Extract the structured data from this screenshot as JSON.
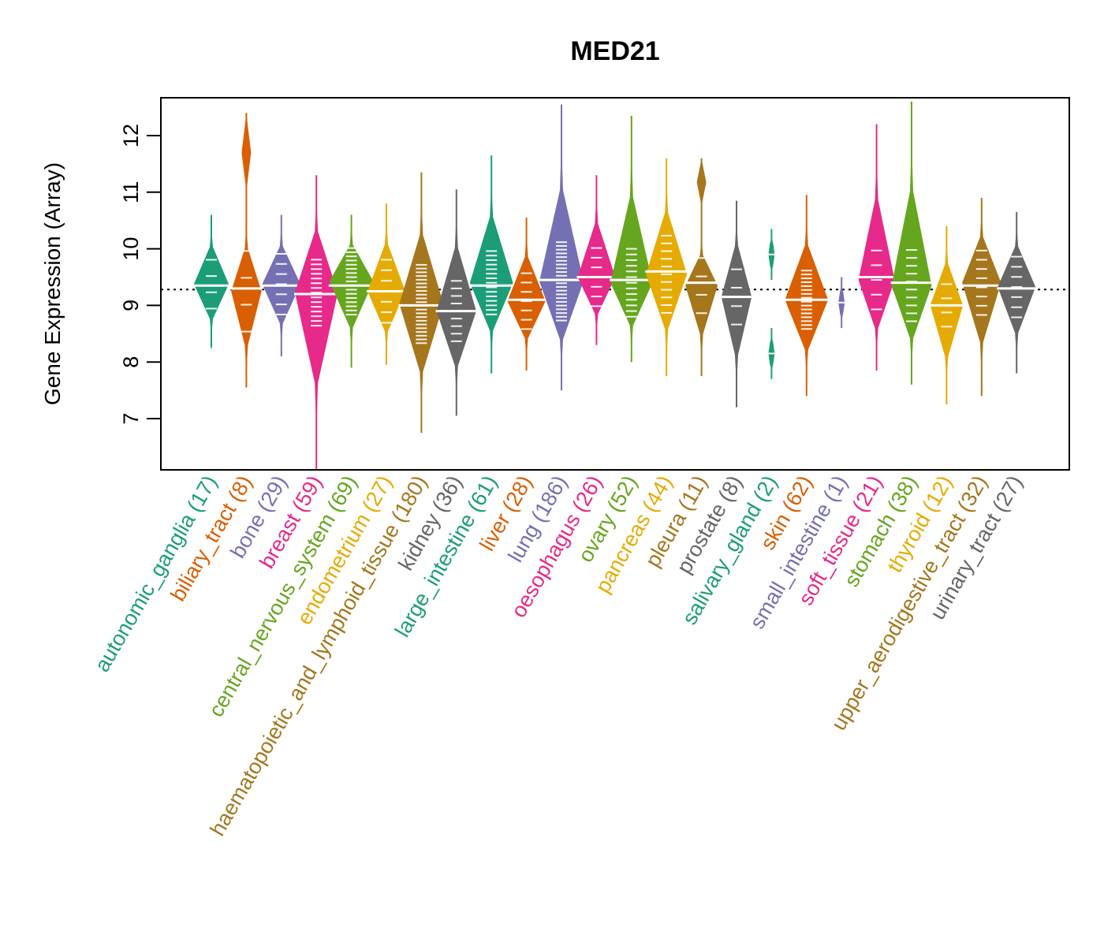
{
  "chart_data": {
    "type": "violin",
    "title": "MED21",
    "xlabel": "",
    "ylabel": "Gene Expression (Array)",
    "ylim": [
      6.1,
      12.7
    ],
    "yticks": [
      7,
      8,
      9,
      10,
      11,
      12
    ],
    "reference_line": 9.28,
    "grid": false,
    "legend": "none",
    "categories": [
      {
        "name": "autonomic_ganglia",
        "n": 17,
        "color": "#1B9E77",
        "median": 9.35,
        "min": 8.25,
        "max": 10.6,
        "q1": 9.0,
        "q3": 9.75
      },
      {
        "name": "biliary_tract",
        "n": 8,
        "color": "#D95F02",
        "median": 9.3,
        "min": 7.55,
        "max": 12.4,
        "q1": 8.5,
        "q3": 10.0,
        "upper_cluster": [
          11.0,
          12.4
        ]
      },
      {
        "name": "bone",
        "n": 29,
        "color": "#7570B3",
        "median": 9.35,
        "min": 8.1,
        "max": 10.6,
        "q1": 8.95,
        "q3": 9.8
      },
      {
        "name": "breast",
        "n": 59,
        "color": "#E7298A",
        "median": 9.2,
        "min": 6.1,
        "max": 11.3,
        "q1": 8.8,
        "q3": 9.65
      },
      {
        "name": "central_nervous_system",
        "n": 69,
        "color": "#66A61E",
        "median": 9.35,
        "min": 7.9,
        "max": 10.6,
        "q1": 9.0,
        "q3": 9.85
      },
      {
        "name": "endometrium",
        "n": 27,
        "color": "#E6AB02",
        "median": 9.25,
        "min": 7.95,
        "max": 10.8,
        "q1": 8.8,
        "q3": 9.7
      },
      {
        "name": "haematopoietic_and_lymphoid_tissue",
        "n": 180,
        "color": "#A6761D",
        "median": 9.0,
        "min": 6.75,
        "max": 11.35,
        "q1": 8.5,
        "q3": 9.55
      },
      {
        "name": "kidney",
        "n": 36,
        "color": "#666666",
        "median": 8.9,
        "min": 7.05,
        "max": 11.05,
        "q1": 8.5,
        "q3": 9.3
      },
      {
        "name": "large_intestine",
        "n": 61,
        "color": "#1B9E77",
        "median": 9.35,
        "min": 7.8,
        "max": 11.65,
        "q1": 9.0,
        "q3": 9.8
      },
      {
        "name": "liver",
        "n": 28,
        "color": "#D95F02",
        "median": 9.1,
        "min": 7.85,
        "max": 10.55,
        "q1": 8.7,
        "q3": 9.45
      },
      {
        "name": "lung",
        "n": 186,
        "color": "#7570B3",
        "median": 9.45,
        "min": 7.5,
        "max": 12.55,
        "q1": 8.9,
        "q3": 9.95
      },
      {
        "name": "oesophagus",
        "n": 26,
        "color": "#E7298A",
        "median": 9.5,
        "min": 8.3,
        "max": 11.3,
        "q1": 9.1,
        "q3": 9.9
      },
      {
        "name": "ovary",
        "n": 52,
        "color": "#66A61E",
        "median": 9.45,
        "min": 8.0,
        "max": 12.35,
        "q1": 8.95,
        "q3": 9.85
      },
      {
        "name": "pancreas",
        "n": 44,
        "color": "#E6AB02",
        "median": 9.6,
        "min": 7.75,
        "max": 11.6,
        "q1": 9.0,
        "q3": 10.1
      },
      {
        "name": "pleura",
        "n": 11,
        "color": "#A6761D",
        "median": 9.4,
        "min": 7.75,
        "max": 11.6,
        "q1": 8.9,
        "q3": 9.8,
        "upper_cluster": [
          10.75,
          11.6
        ]
      },
      {
        "name": "prostate",
        "n": 8,
        "color": "#666666",
        "median": 9.15,
        "min": 7.2,
        "max": 10.85,
        "q1": 8.7,
        "q3": 9.6
      },
      {
        "name": "salivary_gland",
        "n": 2,
        "color": "#1B9E77",
        "points": [
          8.15,
          9.9
        ]
      },
      {
        "name": "skin",
        "n": 62,
        "color": "#D95F02",
        "median": 9.1,
        "min": 7.4,
        "max": 10.95,
        "q1": 8.75,
        "q3": 9.45
      },
      {
        "name": "small_intestine",
        "n": 1,
        "color": "#7570B3",
        "points": [
          9.05
        ]
      },
      {
        "name": "soft_tissue",
        "n": 21,
        "color": "#E7298A",
        "median": 9.5,
        "min": 7.85,
        "max": 12.2,
        "q1": 9.0,
        "q3": 9.9
      },
      {
        "name": "stomach",
        "n": 38,
        "color": "#66A61E",
        "median": 9.4,
        "min": 7.6,
        "max": 12.6,
        "q1": 8.85,
        "q3": 9.85
      },
      {
        "name": "thyroid",
        "n": 12,
        "color": "#E6AB02",
        "median": 9.0,
        "min": 7.25,
        "max": 10.4,
        "q1": 8.7,
        "q3": 9.3
      },
      {
        "name": "upper_aerodigestive_tract",
        "n": 32,
        "color": "#A6761D",
        "median": 9.35,
        "min": 7.4,
        "max": 10.9,
        "q1": 8.95,
        "q3": 9.85
      },
      {
        "name": "urinary_tract",
        "n": 27,
        "color": "#666666",
        "median": 9.3,
        "min": 7.8,
        "max": 10.65,
        "q1": 8.9,
        "q3": 9.75
      }
    ]
  }
}
